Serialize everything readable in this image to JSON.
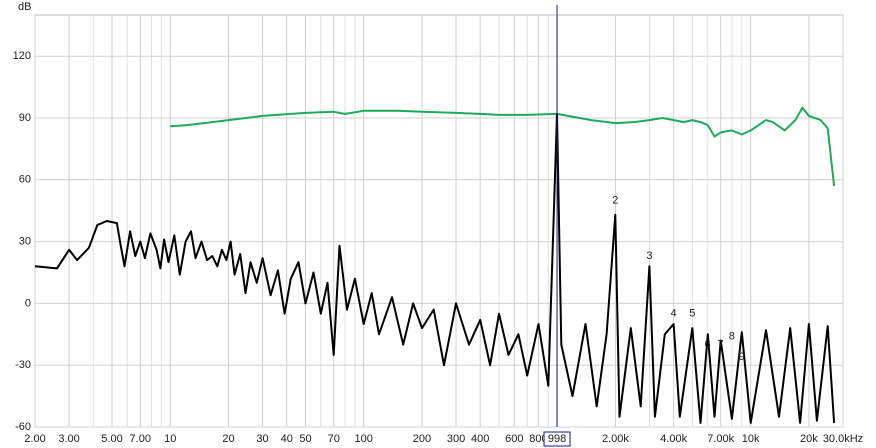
{
  "chart_data": {
    "type": "line",
    "y_label": "dB",
    "xscale": "log",
    "grid": true,
    "xlim": [
      2,
      30000
    ],
    "ylim": [
      -60,
      140
    ],
    "yticks": [
      -60,
      -30,
      0,
      30,
      60,
      90,
      120
    ],
    "xticks": [
      {
        "value": 2,
        "label": "2.00"
      },
      {
        "value": 3,
        "label": "3.00"
      },
      {
        "value": 5,
        "label": "5.00"
      },
      {
        "value": 7,
        "label": "7.00"
      },
      10,
      20,
      30,
      40,
      50,
      70,
      100,
      200,
      300,
      400,
      600,
      800,
      {
        "value": 2000,
        "label": "2.00k"
      },
      {
        "value": 4000,
        "label": "4.00k"
      },
      {
        "value": 7000,
        "label": "7.00k"
      },
      {
        "value": 10000,
        "label": "10k"
      },
      {
        "value": 20000,
        "label": "20k"
      },
      {
        "value": 30000,
        "label": "30.0kHz"
      }
    ],
    "xminorticks": [
      4,
      6,
      8,
      9,
      60,
      80,
      90,
      500,
      700,
      900,
      1000,
      3000,
      5000,
      6000,
      8000,
      9000
    ],
    "cursor": 998,
    "cursor_color": "#1a1a8c",
    "series": [
      {
        "color": "#1faa5a",
        "x": [
          10,
          12,
          15,
          20,
          30,
          50,
          70,
          80,
          100,
          150,
          200,
          300,
          400,
          500,
          700,
          998,
          1500,
          2000,
          2500,
          3000,
          3500,
          4000,
          4500,
          5000,
          5500,
          6000,
          6500,
          7000,
          8000,
          9000,
          10000,
          12000,
          13000,
          15000,
          17000,
          18500,
          20000,
          23000,
          25000,
          27000
        ],
        "values": [
          86,
          86.5,
          87.5,
          89,
          91,
          92.5,
          93,
          92,
          93.5,
          93.5,
          93,
          92.5,
          92,
          91.5,
          91.5,
          92,
          89,
          87.5,
          88,
          89,
          90,
          89,
          88,
          89,
          88,
          86.5,
          81,
          83,
          84,
          82,
          84,
          89,
          88,
          84,
          89,
          95,
          91,
          89,
          85,
          57
        ]
      },
      {
        "color": "#000000",
        "x": [
          2,
          2.6,
          3,
          3.3,
          3.8,
          4.2,
          4.7,
          5.3,
          5.5,
          5.8,
          6.2,
          6.6,
          7,
          7.4,
          7.9,
          8.5,
          8.9,
          9.3,
          9.8,
          10.5,
          11.2,
          12,
          12.8,
          13.5,
          14.5,
          15.5,
          16.5,
          17.5,
          18.5,
          19.5,
          20.5,
          21.5,
          23,
          24.5,
          26,
          28,
          30,
          33,
          36,
          39,
          42,
          46,
          50,
          55,
          60,
          65,
          70,
          75,
          82,
          90,
          100,
          110,
          120,
          140,
          160,
          180,
          200,
          230,
          260,
          300,
          350,
          400,
          450,
          500,
          560,
          630,
          700,
          800,
          900,
          998,
          1050,
          1200,
          1400,
          1600,
          1800,
          1997,
          2100,
          2400,
          2700,
          2996,
          3200,
          3600,
          3994,
          4300,
          4993,
          5500,
          6000,
          6500,
          7000,
          8000,
          9000,
          10000,
          12000,
          14000,
          16000,
          18000,
          20000,
          22000,
          25000,
          27000
        ],
        "values": [
          18,
          17,
          26,
          21,
          27,
          38,
          40,
          39,
          30,
          18,
          35,
          23,
          30,
          22,
          34,
          26,
          17,
          31,
          20,
          33,
          14,
          30,
          35,
          22,
          30,
          21,
          23,
          18,
          26,
          21,
          30,
          14,
          24,
          5,
          20,
          10,
          22,
          4,
          16,
          -5,
          12,
          20,
          0,
          15,
          -5,
          10,
          -25,
          28,
          -3,
          12,
          -10,
          5,
          -15,
          3,
          -20,
          0,
          -12,
          -3,
          -30,
          0,
          -20,
          -8,
          -30,
          -5,
          -25,
          -15,
          -35,
          -10,
          -40,
          92,
          -20,
          -45,
          -10,
          -50,
          -15,
          43,
          -55,
          -12,
          -50,
          18,
          -55,
          -15,
          -10,
          -55,
          -12,
          -58,
          -15,
          -55,
          -18,
          -56,
          -14,
          -58,
          -13,
          -55,
          -12,
          -58,
          -10,
          -57,
          -11,
          -58
        ]
      }
    ],
    "annotations_color": "#1a1aa8",
    "annotations": [
      {
        "text": "2",
        "x": 1997,
        "y": 50
      },
      {
        "text": "3",
        "x": 2996,
        "y": 23
      },
      {
        "text": "4",
        "x": 3994,
        "y": -5
      },
      {
        "text": "5",
        "x": 4993,
        "y": -5
      },
      {
        "text": "6",
        "x": 5990,
        "y": -20
      },
      {
        "text": "7",
        "x": 6989,
        "y": -20
      },
      {
        "text": "8",
        "x": 7988,
        "y": -16
      },
      {
        "text": "9",
        "x": 8987,
        "y": -26
      }
    ]
  }
}
